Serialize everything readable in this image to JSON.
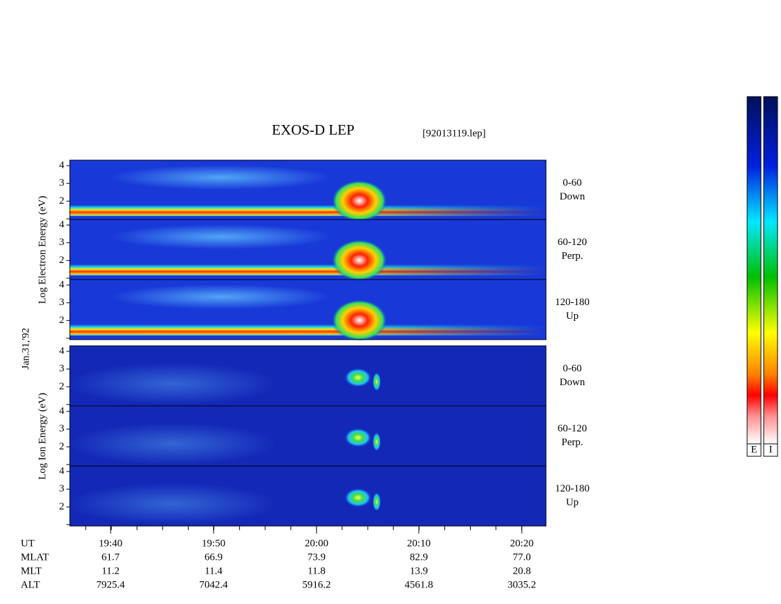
{
  "header": {
    "title": "EXOS-D LEP",
    "file": "[92013119.lep]"
  },
  "axis_labels": {
    "electron": "Log Electron Energy (eV)",
    "ion": "Log Ion Energy (eV)",
    "date": "Jan.31,'92"
  },
  "energy_ticks": [
    2,
    3,
    4
  ],
  "panels": [
    {
      "species": "electron",
      "angle": "0-60",
      "direction": "Down"
    },
    {
      "species": "electron",
      "angle": "60-120",
      "direction": "Perp."
    },
    {
      "species": "electron",
      "angle": "120-180",
      "direction": "Up"
    },
    {
      "species": "ion",
      "angle": "0-60",
      "direction": "Down"
    },
    {
      "species": "ion",
      "angle": "60-120",
      "direction": "Perp."
    },
    {
      "species": "ion",
      "angle": "120-180",
      "direction": "Up"
    }
  ],
  "ephemeris": [
    {
      "name": "UT",
      "values": [
        "19:40",
        "19:50",
        "20:00",
        "20:10",
        "20:20"
      ]
    },
    {
      "name": "MLAT",
      "values": [
        "61.7",
        "66.9",
        "73.9",
        "82.9",
        "77.0"
      ]
    },
    {
      "name": "MLT",
      "values": [
        "11.2",
        "11.4",
        "11.8",
        "13.9",
        "20.8"
      ]
    },
    {
      "name": "ALT",
      "values": [
        "7925.4",
        "7042.4",
        "5916.2",
        "4561.8",
        "3035.2"
      ]
    }
  ],
  "colorbars": [
    "E",
    "I"
  ]
}
